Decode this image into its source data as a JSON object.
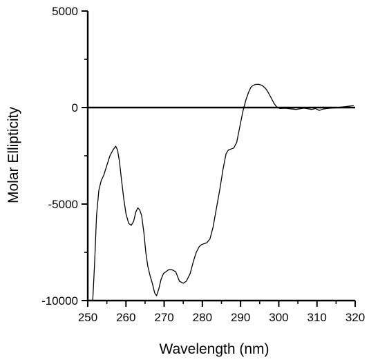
{
  "chart_data": {
    "type": "line",
    "title": "",
    "xlabel": "Wavelength (nm)",
    "ylabel": "Molar Ellipticity",
    "xlim": [
      250,
      320
    ],
    "ylim": [
      -10000,
      5000
    ],
    "x_ticks": [
      250,
      260,
      270,
      280,
      290,
      300,
      310,
      320
    ],
    "x_tick_labels": [
      "250",
      "260",
      "270",
      "280",
      "290",
      "300",
      "310",
      "320"
    ],
    "y_ticks": [
      -10000,
      -5000,
      0,
      5000
    ],
    "y_tick_labels": [
      "-10000",
      "-5000",
      "0",
      "5000"
    ],
    "grid": false,
    "legend": "none",
    "zero_line": true,
    "line_color": "#000000",
    "series": [
      {
        "x": [
          251.3,
          251.8,
          252.3,
          252.9,
          253.5,
          254.2,
          255.0,
          255.8,
          256.6,
          257.3,
          257.8,
          258.3,
          258.8,
          259.4,
          260.0,
          260.7,
          261.4,
          262.0,
          262.6,
          263.1,
          263.6,
          264.1,
          264.7,
          265.2,
          265.7,
          266.3,
          266.9,
          267.5,
          268.0,
          268.6,
          269.2,
          269.8,
          270.5,
          271.2,
          272.0,
          273.0,
          274.0,
          275.0,
          275.8,
          276.8,
          277.6,
          278.4,
          279.2,
          279.8,
          280.5,
          281.2,
          282.0,
          282.8,
          283.6,
          284.6,
          285.4,
          286.2,
          286.8,
          287.5,
          288.2,
          289.0,
          289.8,
          290.6,
          291.4,
          292.1,
          292.7,
          293.3,
          294.0,
          294.8,
          295.6,
          296.5,
          297.2,
          298.0,
          298.8,
          299.6,
          300.4,
          301.2,
          302.0,
          302.8,
          303.6,
          304.6,
          305.6,
          306.6,
          307.6,
          308.6,
          309.6,
          310.6,
          311.6,
          312.6,
          313.6,
          314.6,
          315.6,
          316.6,
          317.6,
          318.6,
          319.6
        ],
        "y": [
          -10000,
          -8000,
          -5600,
          -4300,
          -3800,
          -3500,
          -3000,
          -2500,
          -2200,
          -2000,
          -2200,
          -2800,
          -3700,
          -4700,
          -5500,
          -6000,
          -6100,
          -5900,
          -5400,
          -5200,
          -5300,
          -5600,
          -6500,
          -7500,
          -8200,
          -8700,
          -9100,
          -9600,
          -9750,
          -9400,
          -8900,
          -8600,
          -8500,
          -8400,
          -8400,
          -8500,
          -9000,
          -9100,
          -9000,
          -8600,
          -8000,
          -7500,
          -7200,
          -7100,
          -7050,
          -7000,
          -6800,
          -6200,
          -5300,
          -4200,
          -3200,
          -2400,
          -2200,
          -2150,
          -2100,
          -1800,
          -1000,
          -200,
          400,
          800,
          1050,
          1150,
          1200,
          1200,
          1150,
          1000,
          800,
          500,
          200,
          0,
          -50,
          -40,
          -40,
          -60,
          -80,
          -100,
          -60,
          -30,
          -60,
          -100,
          -50,
          -150,
          -80,
          -50,
          -30,
          -20,
          0,
          30,
          50,
          80,
          100
        ]
      }
    ]
  }
}
